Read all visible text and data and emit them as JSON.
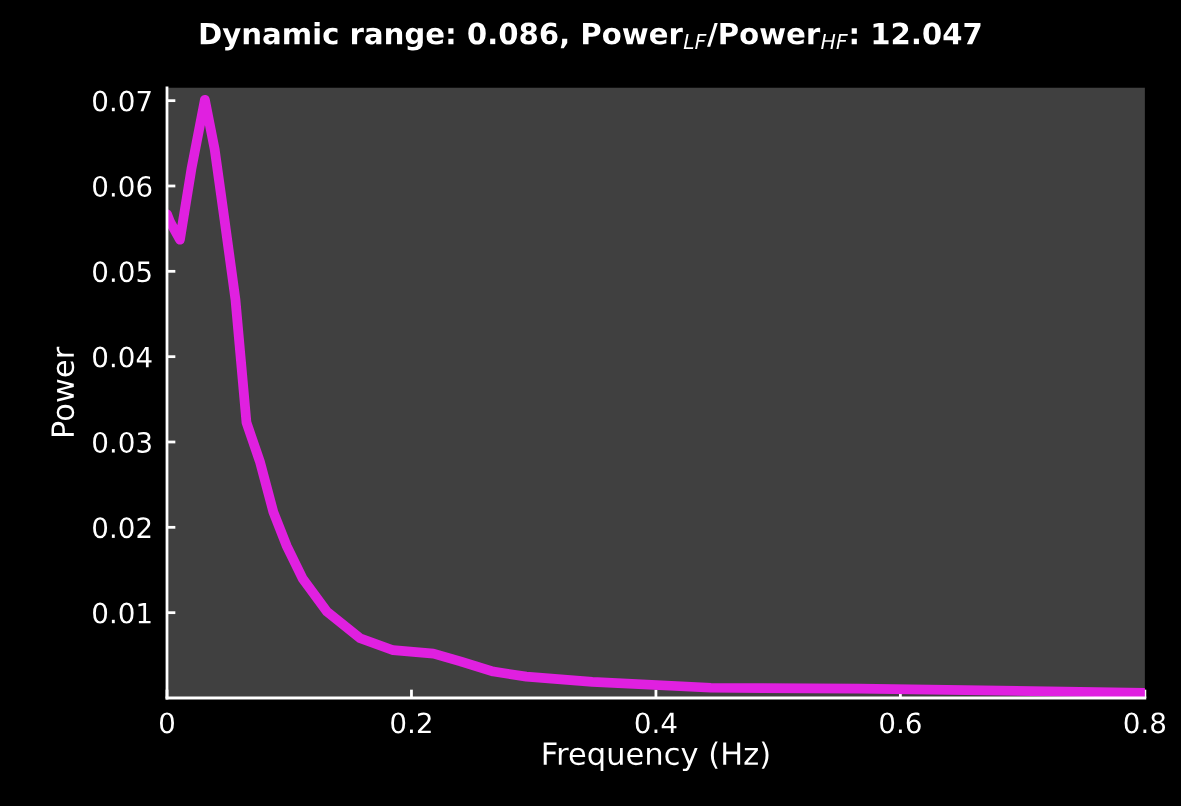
{
  "chart_data": {
    "type": "line",
    "title": "Dynamic range: 0.086, Power$_{LF}$/Power$_{HF}$: 12.047",
    "xlabel": "Frequency (Hz)",
    "ylabel": "Power",
    "x": [
      0,
      0.0025,
      0.0106,
      0.02,
      0.031,
      0.039,
      0.047,
      0.056,
      0.065,
      0.076,
      0.087,
      0.098,
      0.111,
      0.131,
      0.158,
      0.185,
      0.218,
      0.24,
      0.267,
      0.294,
      0.348,
      0.445,
      0.566,
      0.8
    ],
    "series": [
      {
        "color": "#e020e0",
        "values": [
          0.0567,
          0.0558,
          0.0537,
          0.062,
          0.0701,
          0.0643,
          0.0561,
          0.0467,
          0.0323,
          0.0277,
          0.0218,
          0.0178,
          0.014,
          0.0101,
          0.007,
          0.0056,
          0.0052,
          0.0043,
          0.0031,
          0.0025,
          0.0019,
          0.0012,
          0.0011,
          0.0006
        ]
      }
    ],
    "xlim": [
      0,
      0.8
    ],
    "xticks": [
      0,
      0.2,
      0.4,
      0.6,
      0.8
    ],
    "ylim": [
      0,
      0.0715
    ],
    "yticks": [
      0.01,
      0.02,
      0.03,
      0.04,
      0.05,
      0.06,
      0.07
    ],
    "grid": false,
    "legend": false
  }
}
